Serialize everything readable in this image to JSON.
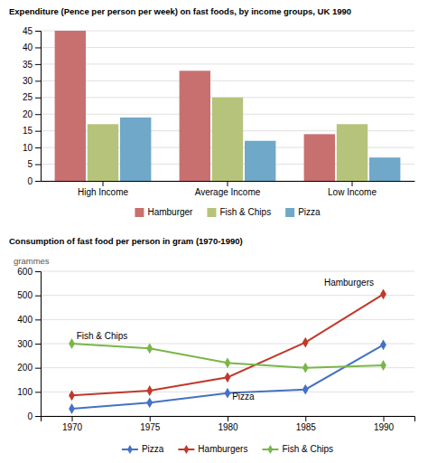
{
  "chart_data": [
    {
      "type": "bar",
      "title": "Expenditure (Pence per person per week) on fast foods, by income groups, UK 1990",
      "categories": [
        "High Income",
        "Average Income",
        "Low Income"
      ],
      "series": [
        {
          "name": "Hamburger",
          "color": "#c87070",
          "values": [
            45,
            33,
            14
          ]
        },
        {
          "name": "Fish & Chips",
          "color": "#b5c47a",
          "values": [
            17,
            25,
            17
          ]
        },
        {
          "name": "Pizza",
          "color": "#6fa8c8",
          "values": [
            19,
            12,
            7
          ]
        }
      ],
      "ylim": [
        0,
        45
      ],
      "yticks": [
        0,
        5,
        10,
        15,
        20,
        25,
        30,
        35,
        40,
        45
      ],
      "grid": true,
      "legend": "bottom"
    },
    {
      "type": "line",
      "title": "Consumption of fast food per person in gram (1970-1990)",
      "ylabel": "grammes",
      "x": [
        1970,
        1975,
        1980,
        1985,
        1990
      ],
      "series": [
        {
          "name": "Pizza",
          "color": "#4472c4",
          "marker": "diamond",
          "values": [
            30,
            55,
            95,
            110,
            295
          ]
        },
        {
          "name": "Hamburgers",
          "color": "#c0392b",
          "marker": "diamond",
          "values": [
            85,
            105,
            160,
            305,
            505
          ]
        },
        {
          "name": "Fish & Chips",
          "color": "#7ab648",
          "marker": "diamond",
          "values": [
            300,
            280,
            220,
            200,
            210
          ]
        }
      ],
      "xlim": [
        1968,
        1992
      ],
      "xticks": [
        1970,
        1975,
        1980,
        1985,
        1990
      ],
      "ylim": [
        0,
        600
      ],
      "yticks": [
        0,
        100,
        200,
        300,
        400,
        500,
        600
      ],
      "grid": true,
      "legend": "bottom",
      "annotations": [
        {
          "text": "Fish & Chips",
          "x": 1970.3,
          "y": 318
        },
        {
          "text": "Pizza",
          "x": 1980.3,
          "y": 68
        },
        {
          "text": "Hamburgers",
          "x": 1986.2,
          "y": 540
        }
      ]
    }
  ]
}
